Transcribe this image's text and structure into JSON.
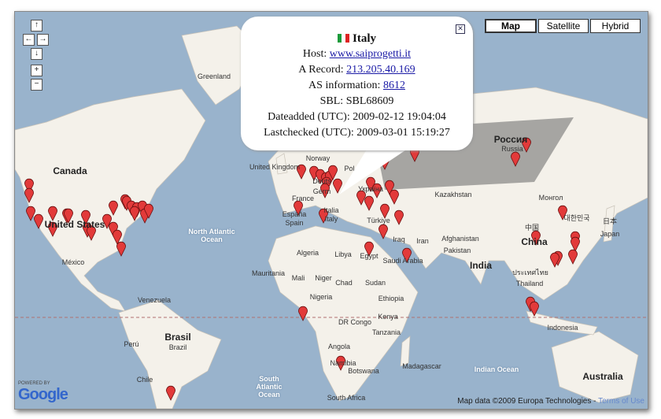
{
  "map_type_buttons": [
    {
      "label": "Map",
      "active": true
    },
    {
      "label": "Satellite",
      "active": false
    },
    {
      "label": "Hybrid",
      "active": false
    }
  ],
  "controls": {
    "pan_up": "↑",
    "pan_left": "←",
    "pan_right": "→",
    "pan_down": "↓",
    "zoom_in": "+",
    "zoom_out": "−"
  },
  "popup": {
    "country": "Italy",
    "flag_icon": "italy-flag-icon",
    "host_label": "Host:",
    "host": "www.saiprogetti.it",
    "a_record_label": "A Record:",
    "a_record": "213.205.40.169",
    "as_label": "AS information:",
    "as": "8612",
    "sbl": "SBL: SBL68609",
    "dateadded": "Dateadded (UTC): 2009-02-12 19:04:04",
    "lastchecked": "Lastchecked (UTC): 2009-03-01 15:19:27",
    "close": "✕"
  },
  "labels": {
    "greenland": "Greenland",
    "canada": "Canada",
    "united_states": "United States",
    "mexico": "México",
    "venezuela": "Venezuela",
    "peru": "Perú",
    "brasil": "Brasil",
    "brazil": "Brazil",
    "chile": "Chile",
    "north_atlantic": "North Atlantic Ocean",
    "south_atlantic": "South Atlantic Ocean",
    "indian_ocean": "Indian Ocean",
    "united_kingdom": "United Kingdom",
    "norway": "Norway",
    "poland": "Pol",
    "deutschland": "Deuts",
    "germany": "Germ",
    "france": "France",
    "espana": "España",
    "spain": "Spain",
    "italia": "Italia",
    "italy": "Italy",
    "ukraine": "Україна",
    "turkiye": "Türkiye",
    "russia_local": "Россия",
    "russia": "Russia",
    "kazakhstan": "Kazakhstan",
    "algeria": "Algeria",
    "libya": "Libya",
    "egypt": "Egypt",
    "mauritania": "Mauritania",
    "mali": "Mali",
    "niger": "Niger",
    "chad": "Chad",
    "sudan": "Sudan",
    "nigeria": "Nigeria",
    "ethiopia": "Ethiopia",
    "dr_congo": "DR Congo",
    "kenya": "Kenya",
    "tanzania": "Tanzania",
    "angola": "Angola",
    "namibia": "Namibia",
    "botswana": "Botswana",
    "south_africa": "South Africa",
    "madagascar": "Madagascar",
    "iraq": "Iraq",
    "iran": "Iran",
    "saudi_arabia": "Saudi Arabia",
    "afghanistan": "Afghanistan",
    "pakistan": "Pakistan",
    "india": "India",
    "china_local": "中国",
    "china": "China",
    "thailand_local": "ประเทศไทย",
    "thailand": "Thailand",
    "mongolia_local": "Монгол",
    "korea_local": "대한민국",
    "japan_local": "日本",
    "japan": "Japan",
    "indonesia": "Indonesia",
    "australia": "Australia"
  },
  "logo": {
    "powered_by": "POWERED BY",
    "name": "Google"
  },
  "attribution": {
    "text": "Map data ©2009 Europa Technologies -",
    "terms": "Terms of Use"
  },
  "colors": {
    "water": "#99b3cc",
    "land": "#f4f1ea",
    "marker": "#e23a3a",
    "equator": "#b07070"
  }
}
